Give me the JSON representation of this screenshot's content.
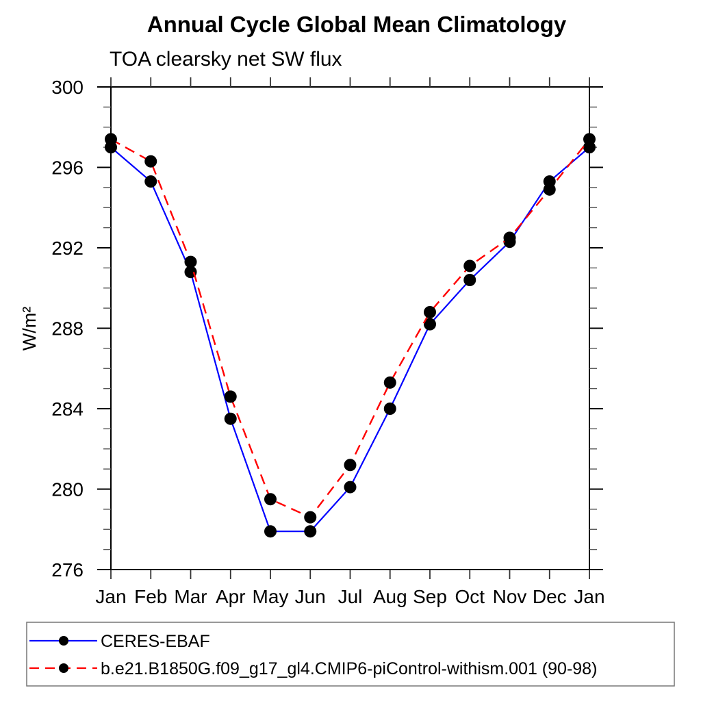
{
  "chart_data": {
    "type": "line",
    "title": "Annual Cycle Global Mean Climatology",
    "subtitle": "TOA clearsky net SW flux",
    "ylabel": "W/m²",
    "categories": [
      "Jan",
      "Feb",
      "Mar",
      "Apr",
      "May",
      "Jun",
      "Jul",
      "Aug",
      "Sep",
      "Oct",
      "Nov",
      "Dec",
      "Jan"
    ],
    "ylim": [
      276,
      300
    ],
    "yticks_major": [
      276,
      280,
      284,
      288,
      292,
      296,
      300
    ],
    "ytick_minor_step": 1,
    "grid": false,
    "frame": true,
    "legend_position": "bottom-left-box",
    "axis_color": "#000000",
    "series": [
      {
        "name": "CERES-EBAF",
        "color": "#0000ff",
        "style": "solid",
        "marker": "filled-circle",
        "marker_color": "#000000",
        "values": [
          297.0,
          295.3,
          290.8,
          283.5,
          277.9,
          277.9,
          280.1,
          284.0,
          288.2,
          290.4,
          292.3,
          295.3,
          297.0
        ]
      },
      {
        "name": "b.e21.B1850G.f09_g17_gl4.CMIP6-piControl-withism.001 (90-98)",
        "color": "#ff0000",
        "style": "dashed",
        "marker": "filled-circle",
        "marker_color": "#000000",
        "values": [
          297.4,
          296.3,
          291.3,
          284.6,
          279.5,
          278.6,
          281.2,
          285.3,
          288.8,
          291.1,
          292.5,
          294.9,
          297.4
        ]
      }
    ]
  }
}
